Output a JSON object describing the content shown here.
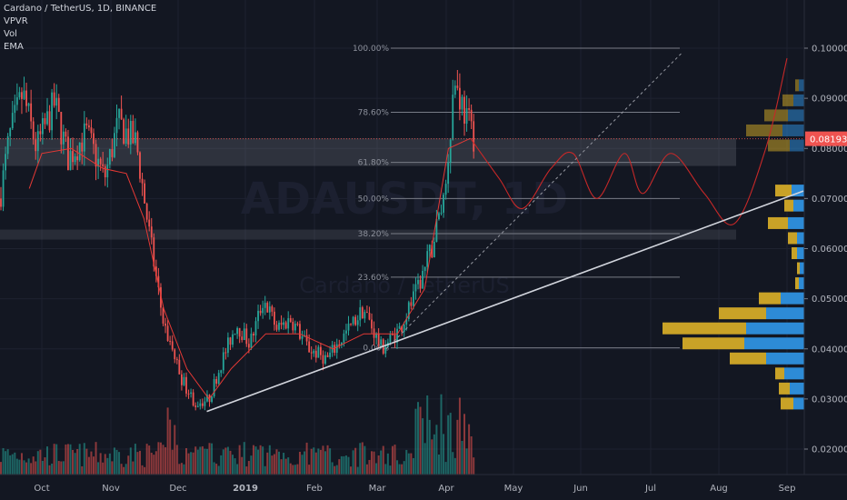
{
  "legend": {
    "symbol": "Cardano / TetherUS, 1D, BINANCE",
    "indicators": [
      "VPVR",
      "Vol",
      "EMA"
    ]
  },
  "watermark": {
    "ticker": "ADAUSDT, 1D",
    "name": "Cardano / TetherUS"
  },
  "colors": {
    "background": "#131722",
    "up": "#26a69a",
    "down": "#ef5350",
    "ema": "#e53935",
    "projection": "#c62828",
    "volume_profile_up": "#2d8bd6",
    "volume_profile_down": "#c9a227",
    "price_label": "#ef5350"
  },
  "price_axis": {
    "ticks": [
      "0.10000",
      "0.09000",
      "0.08000",
      "0.07000",
      "0.06000",
      "0.05000",
      "0.04000",
      "0.03000",
      "0.02000"
    ],
    "current_price": "0.08193"
  },
  "time_axis": {
    "labels": [
      "Oct",
      "Nov",
      "Dec",
      "2019",
      "Feb",
      "Mar",
      "Apr",
      "May",
      "Jun",
      "Jul",
      "Aug",
      "Sep"
    ]
  },
  "chart_data": {
    "type": "candlestick",
    "fib_levels": [
      {
        "label": "100.00%",
        "price": 0.1
      },
      {
        "label": "78.60%",
        "price": 0.0872
      },
      {
        "label": "61.80%",
        "price": 0.0772
      },
      {
        "label": "50.00%",
        "price": 0.07
      },
      {
        "label": "38.20%",
        "price": 0.063
      },
      {
        "label": "23.60%",
        "price": 0.0543
      },
      {
        "label": "0.00%",
        "price": 0.0402
      }
    ],
    "ema_path": [
      [
        "Sep 24",
        0.072
      ],
      [
        "Oct 1",
        0.079
      ],
      [
        "Oct 14",
        0.08
      ],
      [
        "Oct 28",
        0.076
      ],
      [
        "Nov 8",
        0.075
      ],
      [
        "Nov 16",
        0.066
      ],
      [
        "Nov 25",
        0.048
      ],
      [
        "Dec 5",
        0.036
      ],
      [
        "Dec 15",
        0.03
      ],
      [
        "Dec 25",
        0.036
      ],
      [
        "Jan 10",
        0.043
      ],
      [
        "Jan 25",
        0.043
      ],
      [
        "Feb 10",
        0.04
      ],
      [
        "Feb 25",
        0.043
      ],
      [
        "Mar 10",
        0.043
      ],
      [
        "Mar 22",
        0.052
      ],
      [
        "Apr 2",
        0.08
      ],
      [
        "Apr 12",
        0.082
      ]
    ],
    "projection_path": [
      [
        "Apr 12",
        0.082
      ],
      [
        "Apr 25",
        0.074
      ],
      [
        "May 5",
        0.068
      ],
      [
        "May 18",
        0.076
      ],
      [
        "May 28",
        0.079
      ],
      [
        "Jun 8",
        0.07
      ],
      [
        "Jun 20",
        0.079
      ],
      [
        "Jun 28",
        0.071
      ],
      [
        "Jul 10",
        0.079
      ],
      [
        "Jul 25",
        0.071
      ],
      [
        "Aug 8",
        0.065
      ],
      [
        "Aug 22",
        0.08
      ],
      [
        "Sep 1",
        0.098
      ]
    ],
    "trendline": [
      [
        "Dec 14",
        0.0275
      ],
      [
        "Sep 30",
        0.0715
      ]
    ],
    "dashed_projection": [
      [
        "Mar 5",
        0.04
      ],
      [
        "Aug 10",
        0.099
      ]
    ],
    "zones": [
      {
        "from": 0.0765,
        "to": 0.082
      },
      {
        "from": 0.0618,
        "to": 0.0638
      }
    ],
    "volume_profile": [
      {
        "price": 0.0715,
        "up": 14,
        "down": 18
      },
      {
        "price": 0.0685,
        "up": 12,
        "down": 10
      },
      {
        "price": 0.065,
        "up": 18,
        "down": 22
      },
      {
        "price": 0.062,
        "up": 8,
        "down": 10
      },
      {
        "price": 0.059,
        "up": 8,
        "down": 6
      },
      {
        "price": 0.056,
        "up": 5,
        "down": 3
      },
      {
        "price": 0.053,
        "up": 6,
        "down": 4
      },
      {
        "price": 0.05,
        "up": 26,
        "down": 24
      },
      {
        "price": 0.047,
        "up": 42,
        "down": 52
      },
      {
        "price": 0.044,
        "up": 64,
        "down": 92
      },
      {
        "price": 0.041,
        "up": 66,
        "down": 68
      },
      {
        "price": 0.038,
        "up": 42,
        "down": 40
      },
      {
        "price": 0.035,
        "up": 22,
        "down": 10
      },
      {
        "price": 0.032,
        "up": 16,
        "down": 12
      },
      {
        "price": 0.029,
        "up": 12,
        "down": 14
      },
      {
        "price": 0.0805,
        "up": 16,
        "down": 24
      },
      {
        "price": 0.0835,
        "up": 24,
        "down": 40
      },
      {
        "price": 0.0865,
        "up": 18,
        "down": 26
      },
      {
        "price": 0.0895,
        "up": 12,
        "down": 12
      },
      {
        "price": 0.0925,
        "up": 6,
        "down": 4
      }
    ]
  }
}
